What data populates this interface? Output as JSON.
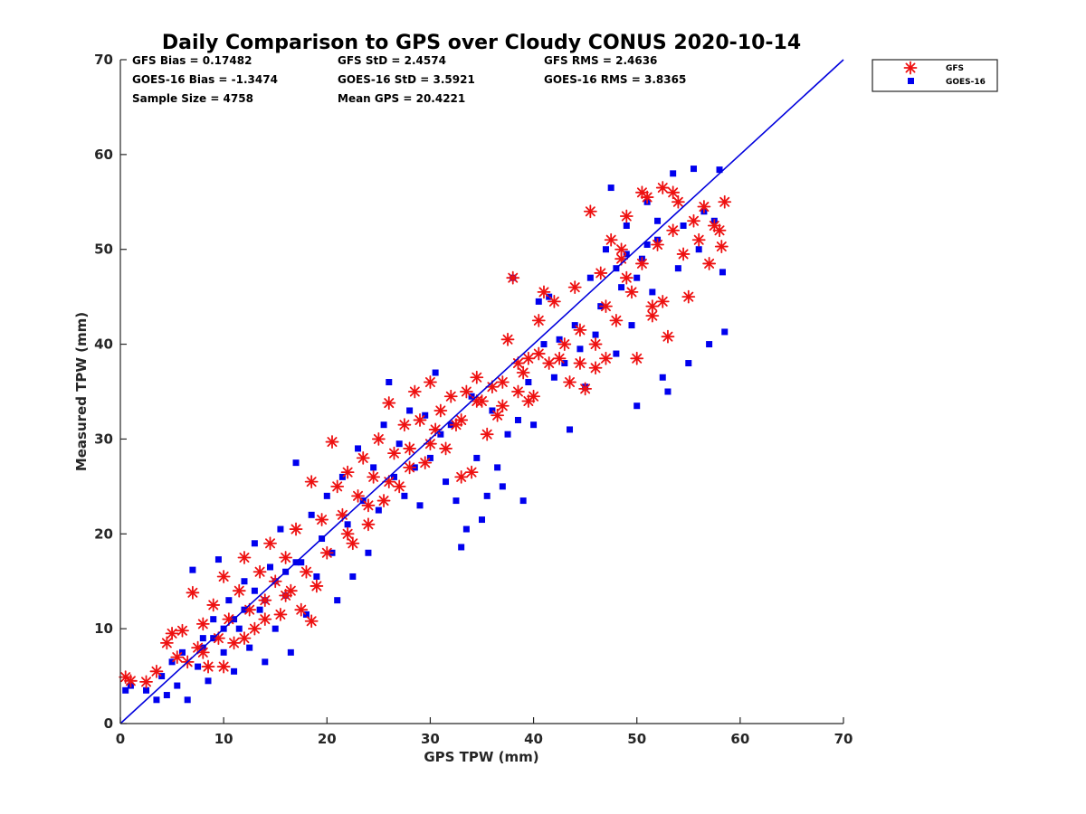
{
  "chart_data": {
    "type": "scatter",
    "title": "Daily Comparison to GPS over Cloudy CONUS 2020-10-14",
    "xlabel": "GPS TPW (mm)",
    "ylabel": "Measured TPW (mm)",
    "xlim": [
      0,
      70
    ],
    "ylim": [
      0,
      70
    ],
    "x_ticks": [
      "0",
      "10",
      "20",
      "30",
      "40",
      "50",
      "60",
      "70"
    ],
    "y_ticks": [
      "0",
      "10",
      "20",
      "30",
      "40",
      "50",
      "60",
      "70"
    ],
    "grid": false,
    "legend_position": "outside-top-right",
    "stats": {
      "gfs_bias": "GFS Bias = 0.17482",
      "gfs_std": "GFS StD = 2.4574",
      "gfs_rms": "GFS RMS = 2.4636",
      "goes_bias": "GOES-16 Bias = -1.3474",
      "goes_std": "GOES-16 StD = 3.5921",
      "goes_rms": "GOES-16 RMS = 3.8365",
      "sample_size": "Sample Size = 4758",
      "mean_gps": "Mean GPS = 20.4221"
    },
    "reference_line": {
      "x": [
        0,
        70
      ],
      "y": [
        0,
        70
      ],
      "color": "#0000dd"
    },
    "series": [
      {
        "name": "GFS",
        "marker": "asterisk",
        "color": "#ee1111",
        "points": [
          [
            0.5,
            4.9
          ],
          [
            1.0,
            4.5
          ],
          [
            2.5,
            4.4
          ],
          [
            3.5,
            5.5
          ],
          [
            4.5,
            8.5
          ],
          [
            5.0,
            9.5
          ],
          [
            5.5,
            7.0
          ],
          [
            6.0,
            9.8
          ],
          [
            6.5,
            6.5
          ],
          [
            7.0,
            13.8
          ],
          [
            7.5,
            8.0
          ],
          [
            8.0,
            10.5
          ],
          [
            8.5,
            6.0
          ],
          [
            9.0,
            12.5
          ],
          [
            9.5,
            9.0
          ],
          [
            10.0,
            15.5
          ],
          [
            10.5,
            11.0
          ],
          [
            11.0,
            8.5
          ],
          [
            11.5,
            14.0
          ],
          [
            12.0,
            17.5
          ],
          [
            12.5,
            12.0
          ],
          [
            13.0,
            10.0
          ],
          [
            13.5,
            16.0
          ],
          [
            14.0,
            13.0
          ],
          [
            14.5,
            19.0
          ],
          [
            15.0,
            15.0
          ],
          [
            15.5,
            11.5
          ],
          [
            16.0,
            17.5
          ],
          [
            16.5,
            14.0
          ],
          [
            17.0,
            20.5
          ],
          [
            17.5,
            12.0
          ],
          [
            18.0,
            16.0
          ],
          [
            18.5,
            10.8
          ],
          [
            19.0,
            14.5
          ],
          [
            19.5,
            21.5
          ],
          [
            18.5,
            25.5
          ],
          [
            20.5,
            29.7
          ],
          [
            21.0,
            25.0
          ],
          [
            21.5,
            22.0
          ],
          [
            22.0,
            26.5
          ],
          [
            22.5,
            19.0
          ],
          [
            23.0,
            24.0
          ],
          [
            23.5,
            28.0
          ],
          [
            24.0,
            21.0
          ],
          [
            24.5,
            26.0
          ],
          [
            25.0,
            30.0
          ],
          [
            25.5,
            23.5
          ],
          [
            26.0,
            33.8
          ],
          [
            26.5,
            28.5
          ],
          [
            27.0,
            25.0
          ],
          [
            27.5,
            31.5
          ],
          [
            28.0,
            29.0
          ],
          [
            28.5,
            35.0
          ],
          [
            29.0,
            32.0
          ],
          [
            29.5,
            27.5
          ],
          [
            30.0,
            36.0
          ],
          [
            30.5,
            31.0
          ],
          [
            31.0,
            33.0
          ],
          [
            31.5,
            29.0
          ],
          [
            32.0,
            34.5
          ],
          [
            32.5,
            31.5
          ],
          [
            33.0,
            26.0
          ],
          [
            33.5,
            35.0
          ],
          [
            34.0,
            26.5
          ],
          [
            34.5,
            36.5
          ],
          [
            35.0,
            34.0
          ],
          [
            35.5,
            30.5
          ],
          [
            36.0,
            35.5
          ],
          [
            36.5,
            32.5
          ],
          [
            37.0,
            36.0
          ],
          [
            37.5,
            40.5
          ],
          [
            38.0,
            47.0
          ],
          [
            38.5,
            35.0
          ],
          [
            39.0,
            37.0
          ],
          [
            39.5,
            38.5
          ],
          [
            40.0,
            34.5
          ],
          [
            40.5,
            42.5
          ],
          [
            41.0,
            45.5
          ],
          [
            41.5,
            38.0
          ],
          [
            42.0,
            44.5
          ],
          [
            42.5,
            38.5
          ],
          [
            43.0,
            40.0
          ],
          [
            43.5,
            36.0
          ],
          [
            44.0,
            46.0
          ],
          [
            44.5,
            41.5
          ],
          [
            45.0,
            35.3
          ],
          [
            45.5,
            54.0
          ],
          [
            46.0,
            40.0
          ],
          [
            46.5,
            47.5
          ],
          [
            47.0,
            44.0
          ],
          [
            47.5,
            51.0
          ],
          [
            48.0,
            42.5
          ],
          [
            48.5,
            49.0
          ],
          [
            49.0,
            53.5
          ],
          [
            49.5,
            45.5
          ],
          [
            50.0,
            38.5
          ],
          [
            50.5,
            48.5
          ],
          [
            51.0,
            55.5
          ],
          [
            51.5,
            44.0
          ],
          [
            52.0,
            50.5
          ],
          [
            52.5,
            56.5
          ],
          [
            53.0,
            40.8
          ],
          [
            53.5,
            52.0
          ],
          [
            54.0,
            55.0
          ],
          [
            54.5,
            49.5
          ],
          [
            55.0,
            45.0
          ],
          [
            55.5,
            53.0
          ],
          [
            56.0,
            51.0
          ],
          [
            56.5,
            54.5
          ],
          [
            57.0,
            48.5
          ],
          [
            57.5,
            52.5
          ],
          [
            58.0,
            52.0
          ],
          [
            58.2,
            50.3
          ],
          [
            58.5,
            55.0
          ],
          [
            47.0,
            38.5
          ],
          [
            51.5,
            43.0
          ],
          [
            52.5,
            44.5
          ],
          [
            50.5,
            56.0
          ],
          [
            53.5,
            56.0
          ],
          [
            48.5,
            50.0
          ],
          [
            8.0,
            7.5
          ],
          [
            10.0,
            6.0
          ],
          [
            12.0,
            9.0
          ],
          [
            14.0,
            11.0
          ],
          [
            16.0,
            13.5
          ],
          [
            20.0,
            18.0
          ],
          [
            22.0,
            20.0
          ],
          [
            24.0,
            23.0
          ],
          [
            26.0,
            25.5
          ],
          [
            28.0,
            27.0
          ],
          [
            30.0,
            29.5
          ],
          [
            33.0,
            32.0
          ],
          [
            34.5,
            34.0
          ],
          [
            37.0,
            33.5
          ],
          [
            38.5,
            38.0
          ],
          [
            39.5,
            34.0
          ],
          [
            40.5,
            39.0
          ],
          [
            44.5,
            38.0
          ],
          [
            46.0,
            37.5
          ],
          [
            49.0,
            47.0
          ]
        ]
      },
      {
        "name": "GOES-16",
        "marker": "square",
        "color": "#0000ee",
        "points": [
          [
            0.5,
            3.5
          ],
          [
            1.0,
            4.0
          ],
          [
            2.5,
            3.5
          ],
          [
            3.5,
            2.5
          ],
          [
            4.0,
            5.0
          ],
          [
            4.5,
            3.0
          ],
          [
            5.0,
            6.5
          ],
          [
            5.5,
            4.0
          ],
          [
            6.0,
            7.5
          ],
          [
            6.5,
            2.5
          ],
          [
            7.0,
            16.2
          ],
          [
            7.5,
            6.0
          ],
          [
            8.0,
            9.0
          ],
          [
            8.5,
            4.5
          ],
          [
            9.0,
            11.0
          ],
          [
            9.5,
            17.3
          ],
          [
            10.0,
            7.5
          ],
          [
            10.5,
            13.0
          ],
          [
            11.0,
            5.5
          ],
          [
            11.5,
            10.0
          ],
          [
            12.0,
            15.0
          ],
          [
            12.5,
            8.0
          ],
          [
            13.0,
            19.0
          ],
          [
            13.5,
            12.0
          ],
          [
            14.0,
            6.5
          ],
          [
            14.5,
            16.5
          ],
          [
            15.0,
            10.0
          ],
          [
            15.5,
            20.5
          ],
          [
            16.0,
            13.5
          ],
          [
            16.5,
            7.5
          ],
          [
            17.0,
            27.5
          ],
          [
            17.5,
            17.0
          ],
          [
            18.0,
            11.5
          ],
          [
            18.5,
            22.0
          ],
          [
            19.0,
            15.5
          ],
          [
            19.5,
            19.5
          ],
          [
            20.0,
            24.0
          ],
          [
            20.5,
            18.0
          ],
          [
            21.0,
            13.0
          ],
          [
            21.5,
            26.0
          ],
          [
            22.0,
            21.0
          ],
          [
            22.5,
            15.5
          ],
          [
            23.0,
            29.0
          ],
          [
            23.5,
            23.5
          ],
          [
            24.0,
            18.0
          ],
          [
            24.5,
            27.0
          ],
          [
            25.0,
            22.5
          ],
          [
            25.5,
            31.5
          ],
          [
            26.0,
            36.0
          ],
          [
            26.5,
            26.0
          ],
          [
            27.0,
            29.5
          ],
          [
            27.5,
            24.0
          ],
          [
            28.0,
            33.0
          ],
          [
            28.5,
            27.0
          ],
          [
            29.0,
            23.0
          ],
          [
            29.5,
            32.5
          ],
          [
            30.0,
            28.0
          ],
          [
            30.5,
            37.0
          ],
          [
            31.0,
            30.5
          ],
          [
            31.5,
            25.5
          ],
          [
            32.0,
            31.5
          ],
          [
            32.5,
            23.5
          ],
          [
            33.0,
            18.6
          ],
          [
            33.5,
            20.5
          ],
          [
            34.0,
            34.5
          ],
          [
            34.5,
            28.0
          ],
          [
            35.0,
            21.5
          ],
          [
            35.5,
            24.0
          ],
          [
            36.0,
            33.0
          ],
          [
            36.5,
            27.0
          ],
          [
            37.0,
            25.0
          ],
          [
            37.5,
            30.5
          ],
          [
            38.0,
            47.0
          ],
          [
            38.5,
            32.0
          ],
          [
            39.0,
            23.5
          ],
          [
            39.5,
            36.0
          ],
          [
            40.0,
            31.5
          ],
          [
            40.5,
            44.5
          ],
          [
            41.0,
            40.0
          ],
          [
            41.5,
            45.0
          ],
          [
            42.0,
            36.5
          ],
          [
            42.5,
            40.5
          ],
          [
            43.0,
            38.0
          ],
          [
            43.5,
            31.0
          ],
          [
            44.0,
            42.0
          ],
          [
            44.5,
            39.5
          ],
          [
            45.0,
            35.5
          ],
          [
            45.5,
            47.0
          ],
          [
            46.0,
            41.0
          ],
          [
            46.5,
            44.0
          ],
          [
            47.0,
            50.0
          ],
          [
            47.5,
            56.5
          ],
          [
            48.0,
            39.0
          ],
          [
            48.5,
            46.0
          ],
          [
            49.0,
            52.5
          ],
          [
            49.5,
            42.0
          ],
          [
            50.0,
            33.5
          ],
          [
            50.5,
            49.0
          ],
          [
            51.0,
            55.0
          ],
          [
            51.5,
            45.5
          ],
          [
            52.0,
            51.0
          ],
          [
            52.5,
            36.5
          ],
          [
            53.0,
            35.0
          ],
          [
            53.5,
            58.0
          ],
          [
            54.0,
            48.0
          ],
          [
            54.5,
            52.5
          ],
          [
            55.0,
            38.0
          ],
          [
            55.5,
            58.5
          ],
          [
            56.0,
            50.0
          ],
          [
            56.5,
            54.0
          ],
          [
            57.0,
            40.0
          ],
          [
            57.5,
            53.0
          ],
          [
            58.0,
            58.4
          ],
          [
            58.3,
            47.6
          ],
          [
            58.5,
            41.3
          ],
          [
            49.0,
            49.5
          ],
          [
            50.0,
            47.0
          ],
          [
            51.0,
            50.5
          ],
          [
            52.0,
            53.0
          ],
          [
            48.0,
            48.0
          ],
          [
            12.0,
            12.0
          ],
          [
            13.0,
            14.0
          ],
          [
            14.0,
            13.0
          ],
          [
            15.0,
            15.0
          ],
          [
            16.0,
            16.0
          ],
          [
            11.0,
            11.0
          ],
          [
            10.0,
            10.0
          ],
          [
            9.0,
            9.0
          ],
          [
            8.0,
            8.0
          ],
          [
            17.0,
            17.0
          ]
        ]
      }
    ]
  }
}
